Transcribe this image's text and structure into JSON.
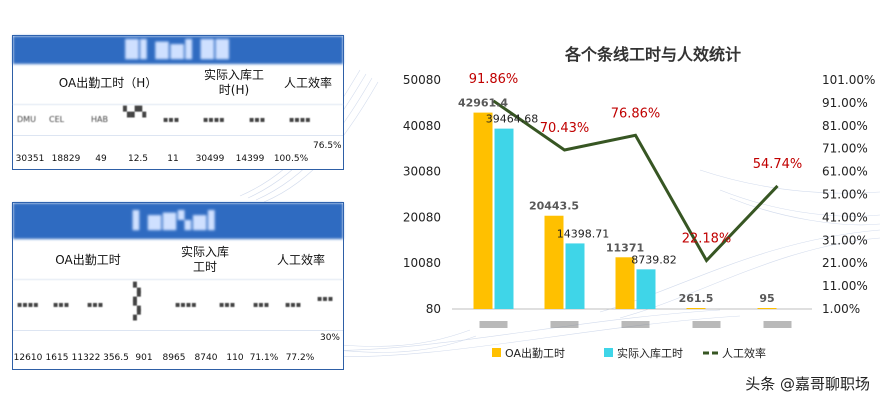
{
  "table1": {
    "headers": [
      "OA出勤工时（H）",
      "实际入库工时(H)",
      "人工效率"
    ],
    "subheaders": [
      "DMU",
      "CEL",
      "HAB",
      "",
      "",
      "",
      "",
      ""
    ],
    "values": [
      "30351",
      "18829",
      "49",
      "12.5",
      "11",
      "30499",
      "14399",
      "100.5%",
      "76.5%"
    ]
  },
  "table2": {
    "headers": [
      "OA出勤工时",
      "实际入库工时",
      "人工效率"
    ],
    "values": [
      "12610",
      "1615",
      "11322",
      "356.5",
      "901",
      "8965",
      "8740",
      "110",
      "71.1%",
      "77.2%",
      "30%"
    ]
  },
  "chart_data": {
    "type": "bar",
    "title": "各个条线工时与人效统计",
    "categories": [
      "",
      "",
      "",
      "",
      ""
    ],
    "series": [
      {
        "name": "OA出勤工时",
        "type": "bar",
        "color": "#ffc000",
        "values": [
          42961.4,
          20443.5,
          11371,
          261.5,
          95
        ],
        "labels": [
          "42961.4",
          "20443.5",
          "11371",
          "261.5",
          "95"
        ]
      },
      {
        "name": "实际入库工时",
        "type": "bar",
        "color": "#3fd5e8",
        "values": [
          39464.68,
          14398.71,
          8739.82,
          0,
          0
        ],
        "labels": [
          "39464.68",
          "14398.71",
          "8739.82",
          "",
          ""
        ]
      },
      {
        "name": "人工效率",
        "type": "line",
        "axis": "right",
        "color": "#375623",
        "values": [
          91.86,
          70.43,
          76.86,
          22.18,
          54.74
        ],
        "labels": [
          "91.86%",
          "70.43%",
          "76.86%",
          "22.18%",
          "54.74%"
        ]
      }
    ],
    "y_ticks": [
      "80",
      "10080",
      "20080",
      "30080",
      "40080",
      "50080"
    ],
    "ylim": [
      80,
      50080
    ],
    "y2_ticks": [
      "1.00%",
      "11.00%",
      "21.00%",
      "31.00%",
      "41.00%",
      "51.00%",
      "61.00%",
      "71.00%",
      "81.00%",
      "91.00%",
      "101.00%"
    ],
    "y2lim": [
      1,
      101
    ],
    "legend_position": "bottom",
    "grid": false
  },
  "watermark": "头条 @嘉哥聊职场",
  "colors": {
    "table_header": "#2f6bc1",
    "bar1": "#ffc000",
    "bar2": "#3fd5e8",
    "line": "#375623",
    "pct_label": "#c00000"
  }
}
